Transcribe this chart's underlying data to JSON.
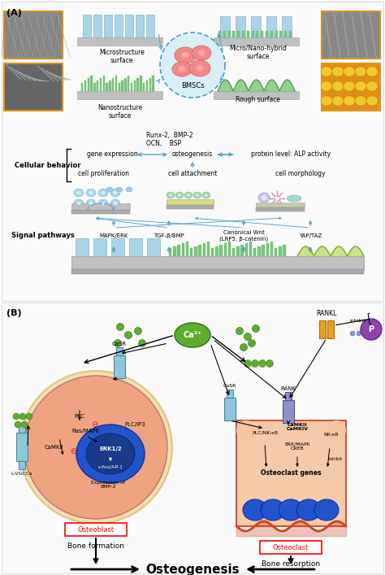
{
  "bg_color": "#ffffff",
  "panel_a": {
    "micro_surface_label": "Microstructure\nsurface",
    "nano_surface_label": "Nanostructure\nsurface",
    "hybrid_surface_label": "Micro/Nano-hybrid\nsurface",
    "rough_surface_label": "Rough surface",
    "bmscs_label": "BMSCs",
    "gene_markers": "Runx-2,  BMP-2\nOCN,    BSP",
    "cellular_behavior_label": "Cellular behavior",
    "gene_expression": "gene expression",
    "osteogenesis": "osteogenesis",
    "protein_level": "protein level: ALP activity",
    "cell_proliferation": "cell proliferation",
    "cell_attachment": "cell attachment",
    "cell_morphology": "cell morphology",
    "signal_pathways_label": "Signal pathways",
    "pathway1": "MAPK/ERK",
    "pathway2": "TGF-β/BMP",
    "pathway3": "Canonical Wnt\n(LRP5, β-catenin)",
    "pathway4": "YAP/TAZ",
    "arrow_color": "#4a9bc4",
    "bar_blue": "#a8d4e6",
    "bar_green": "#7bc67e",
    "plate_color": "#c0c0c0",
    "wave_color": "#b8d860"
  },
  "panel_b": {
    "ca_label": "Ca²⁺",
    "ca_color": "#5fad2c",
    "rankl_label": "RANKL",
    "rankl_color": "#e8a020",
    "rank_label": "RANK",
    "casr_label": "CaSR",
    "lvgccs_label": "L-VGCCs",
    "inhibit_label": "inhibit",
    "p_label": "P",
    "p_color": "#8e44ad",
    "pkc_label": "PKC",
    "ras_mapk_label": "Ras/MAPK",
    "camkii_ob_label": "CaMKII",
    "plcip3_label": "PLC/IP3",
    "erk12_label": "ERK1/2",
    "cfos_label": "c-fos/AP-1",
    "bmp2_label": "Expression of\nBMP-2",
    "osteoblast_label": "Osteoblast",
    "bone_formation_label": "Bone formation",
    "osteoclast_label": "Osteoclast",
    "bone_resorption_label": "Bone resorption",
    "osteogenesis_label": "Osteogenesis",
    "camkii_camkiv": "CaMKII\nCaMKIV",
    "plc_nfkb": "PLC/NK-κB",
    "erk_mapk_creb": "ERK/MAPK\nCREB",
    "nfkb": "NK-κB",
    "osteoclast_genes": "Osteoclast genes",
    "ob_cell_color": "#f0a080",
    "ob_border_color": "#e8c870",
    "ob_nucleus_outer": "#2255cc",
    "ob_nucleus_inner": "#1a3a8a",
    "oc_cell_color": "#f5c5a0",
    "oc_border_color": "#cc4422",
    "oc_nucleus_color": "#2255cc"
  }
}
